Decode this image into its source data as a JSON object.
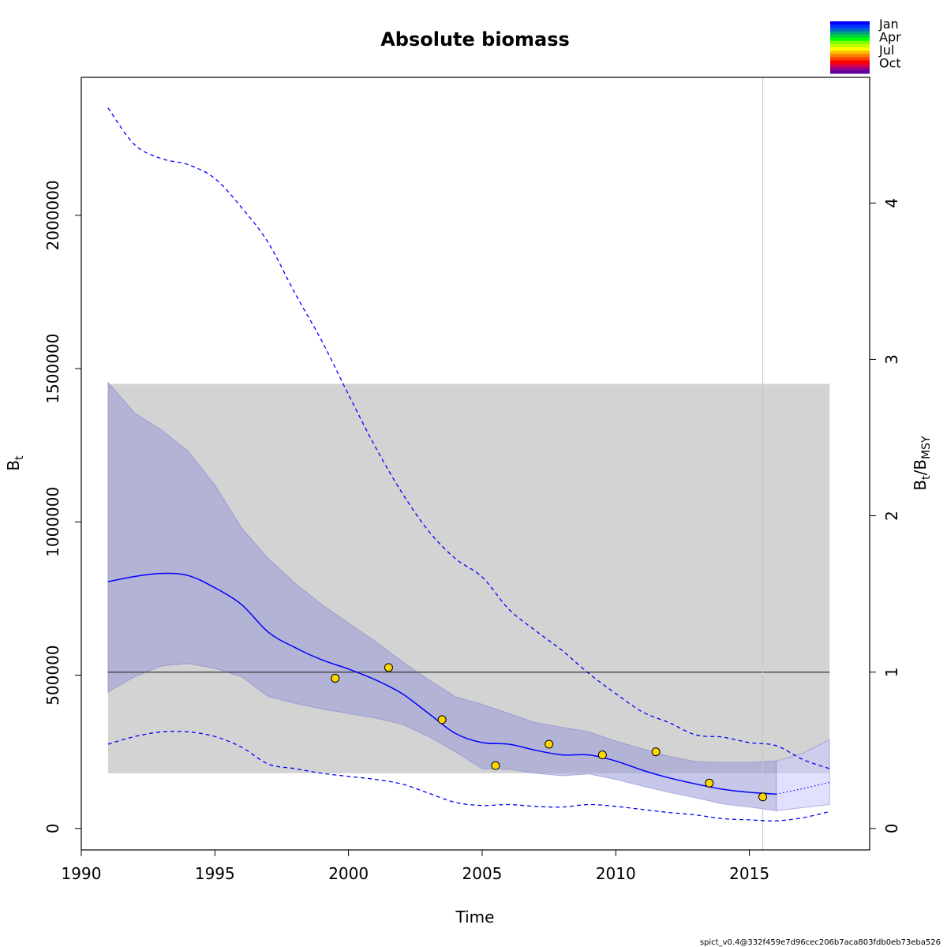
{
  "chart_data": {
    "type": "line",
    "title": "Absolute biomass",
    "xlabel": "Time",
    "ylabel": {
      "main": "B",
      "sub": "t"
    },
    "ylabel_right": {
      "main1": "B",
      "sub1": "t",
      "slash": "/",
      "main2": "B",
      "sub2": "MSY"
    },
    "xlim": [
      1990,
      2019.5
    ],
    "ylim": [
      -70000,
      2450000
    ],
    "right_ratio_per_unit": 510000,
    "x_ticks": [
      1990,
      1995,
      2000,
      2005,
      2010,
      2015
    ],
    "x_tick_labels": [
      "1990",
      "1995",
      "2000",
      "2005",
      "2010",
      "2015"
    ],
    "y_ticks": [
      0,
      500000,
      1000000,
      1500000,
      2000000
    ],
    "y_tick_labels": [
      "0",
      "500000",
      "1000000",
      "1500000",
      "2000000"
    ],
    "y_ticks_right": [
      0,
      1,
      2,
      3,
      4
    ],
    "y_tick_labels_right": [
      "0",
      "1",
      "2",
      "3",
      "4"
    ],
    "bmsy": 510000,
    "bmsy_ci_rect": {
      "x": [
        1991,
        2018
      ],
      "y": [
        180000,
        1450000
      ]
    },
    "vline_x": 2015.5,
    "series": {
      "estimate": {
        "x": [
          1991,
          1992,
          1993,
          1994,
          1995,
          1996,
          1997,
          1998,
          1999,
          2000,
          2001,
          2002,
          2003,
          2004,
          2005,
          2006,
          2007,
          2008,
          2009,
          2010,
          2011,
          2012,
          2013,
          2014,
          2015,
          2016
        ],
        "y": [
          805000,
          822000,
          832000,
          825000,
          785000,
          730000,
          640000,
          590000,
          550000,
          520000,
          485000,
          440000,
          375000,
          310000,
          280000,
          275000,
          255000,
          240000,
          240000,
          220000,
          190000,
          165000,
          145000,
          128000,
          118000,
          112000
        ]
      },
      "estimate_forecast": {
        "x": [
          2016,
          2017,
          2018
        ],
        "y": [
          112000,
          130000,
          150000
        ]
      },
      "ci_lower": {
        "x": [
          1991,
          1992,
          1993,
          1994,
          1995,
          1996,
          1997,
          1998,
          1999,
          2000,
          2001,
          2002,
          2003,
          2004,
          2005,
          2006,
          2007,
          2008,
          2009,
          2010,
          2011,
          2012,
          2013,
          2014,
          2015,
          2016,
          2017,
          2018
        ],
        "y": [
          445000,
          495000,
          530000,
          538000,
          522000,
          495000,
          430000,
          408000,
          390000,
          375000,
          360000,
          340000,
          300000,
          250000,
          195000,
          193000,
          180000,
          172000,
          178000,
          160000,
          138000,
          118000,
          100000,
          80000,
          70000,
          58000,
          68000,
          78000
        ]
      },
      "ci_upper": {
        "x": [
          1991,
          1992,
          1993,
          1994,
          1995,
          1996,
          1997,
          1998,
          1999,
          2000,
          2001,
          2002,
          2003,
          2004,
          2005,
          2006,
          2007,
          2008,
          2009,
          2010,
          2011,
          2012,
          2013,
          2014,
          2015,
          2016,
          2017,
          2018
        ],
        "y": [
          1455000,
          1355000,
          1300000,
          1230000,
          1120000,
          980000,
          880000,
          800000,
          730000,
          670000,
          610000,
          545000,
          485000,
          430000,
          405000,
          375000,
          345000,
          330000,
          315000,
          285000,
          260000,
          235000,
          218000,
          215000,
          215000,
          220000,
          245000,
          290000
        ]
      },
      "outer_upper": {
        "x": [
          1991,
          1992,
          1993,
          1994,
          1995,
          1996,
          1997,
          1998,
          1999,
          2000,
          2001,
          2002,
          2003,
          2004,
          2005,
          2006,
          2007,
          2008,
          2009,
          2010,
          2011,
          2012,
          2013,
          2014,
          2015,
          2016,
          2017,
          2018
        ],
        "y": [
          2350000,
          2230000,
          2185000,
          2165000,
          2120000,
          2025000,
          1910000,
          1745000,
          1590000,
          1415000,
          1245000,
          1095000,
          970000,
          880000,
          820000,
          715000,
          645000,
          580000,
          505000,
          440000,
          380000,
          345000,
          305000,
          298000,
          280000,
          270000,
          225000,
          195000
        ]
      },
      "outer_lower": {
        "x": [
          1991,
          1992,
          1993,
          1994,
          1995,
          1996,
          1997,
          1998,
          1999,
          2000,
          2001,
          2002,
          2003,
          2004,
          2005,
          2006,
          2007,
          2008,
          2009,
          2010,
          2011,
          2012,
          2013,
          2014,
          2015,
          2016,
          2017,
          2018
        ],
        "y": [
          275000,
          300000,
          315000,
          315000,
          300000,
          265000,
          210000,
          195000,
          180000,
          170000,
          160000,
          145000,
          115000,
          85000,
          75000,
          78000,
          72000,
          70000,
          78000,
          72000,
          62000,
          52000,
          44000,
          32000,
          28000,
          25000,
          35000,
          55000
        ]
      },
      "observations": {
        "x": [
          1999.5,
          2001.5,
          2003.5,
          2005.5,
          2007.5,
          2009.5,
          2011.5,
          2013.5,
          2015.5
        ],
        "y": [
          490000,
          525000,
          355000,
          205000,
          275000,
          240000,
          250000,
          148000,
          103000
        ]
      }
    },
    "legend": {
      "placement": "top-right",
      "labels": [
        "Jan",
        "Apr",
        "Jul",
        "Oct"
      ],
      "colors": [
        "#0000ff",
        "#0030ff",
        "#0060d0",
        "#00a080",
        "#00d040",
        "#00ff00",
        "#80ff00",
        "#c0ff00",
        "#ffff00",
        "#ffc000",
        "#ff8000",
        "#ff4000",
        "#ff0000",
        "#e00040",
        "#a00080",
        "#6000a0"
      ]
    },
    "colors": {
      "estimate": "#0000ff",
      "ci_fill": "#9999d8",
      "ci_fill_forecast": "#c8c8ff",
      "bmsy_rect": "#d3d3d3",
      "bmsy_line": "#404040",
      "obs_fill": "#ffd700",
      "vline": "#c8c8c8"
    }
  },
  "footer": "spict_v0.4@332f459e7d96cec206b7aca803fdb0eb73eba526"
}
